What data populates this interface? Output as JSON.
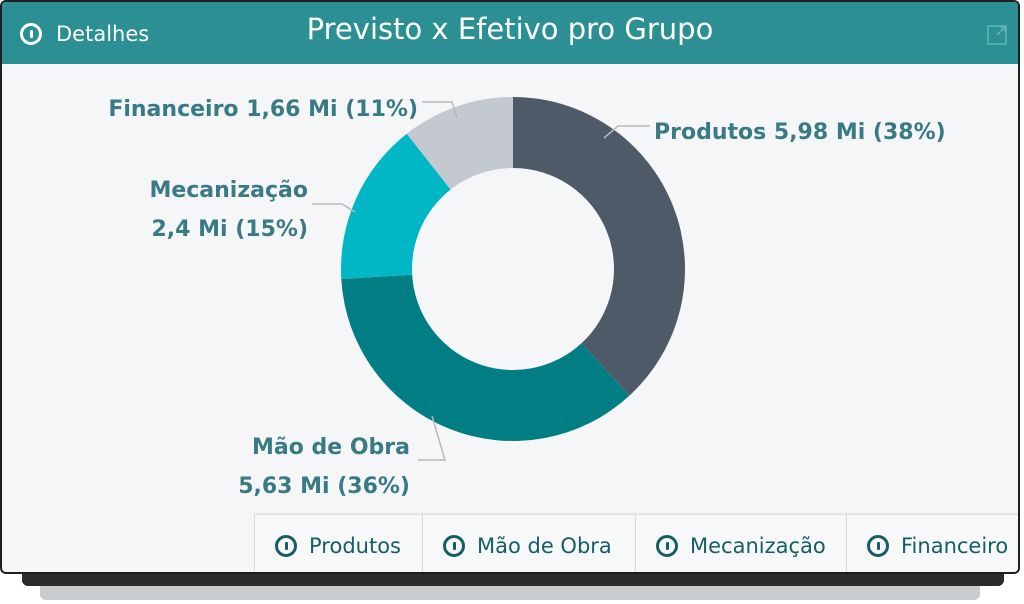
{
  "header": {
    "details_label": "Detalhes",
    "title": "Previsto x Efetivo pro Grupo",
    "details_icon": "info-icon",
    "expand_icon": "expand-icon"
  },
  "chart_data": {
    "type": "pie",
    "donut": true,
    "start_angle_deg": 0,
    "slices": [
      {
        "name": "Produtos",
        "value": 5.98,
        "percent": 38,
        "color": "#4f5a68",
        "label_lines": [
          "Produtos 5,98 Mi (38%)"
        ]
      },
      {
        "name": "Mão de Obra",
        "value": 5.63,
        "percent": 36,
        "color": "#017e84",
        "label_lines": [
          "Mão de Obra",
          "5,63 Mi (36%)"
        ]
      },
      {
        "name": "Mecanização",
        "value": 2.4,
        "percent": 15,
        "color": "#00b8c5",
        "label_lines": [
          "Mecanização",
          "2,4 Mi (15%)"
        ]
      },
      {
        "name": "Financeiro",
        "value": 1.66,
        "percent": 11,
        "color": "#c4c9d0",
        "label_lines": [
          "Financeiro 1,66 Mi (11%)"
        ]
      }
    ]
  },
  "tabs": [
    {
      "label": "Produtos",
      "icon": "info-icon"
    },
    {
      "label": "Mão de Obra",
      "icon": "info-icon"
    },
    {
      "label": "Mecanização",
      "icon": "info-icon"
    },
    {
      "label": "Financeiro",
      "icon": "info-icon"
    }
  ],
  "colors": {
    "header_bg": "#2b8f94",
    "label_text": "#3a7a85",
    "leader_line": "#b8b8b8"
  }
}
